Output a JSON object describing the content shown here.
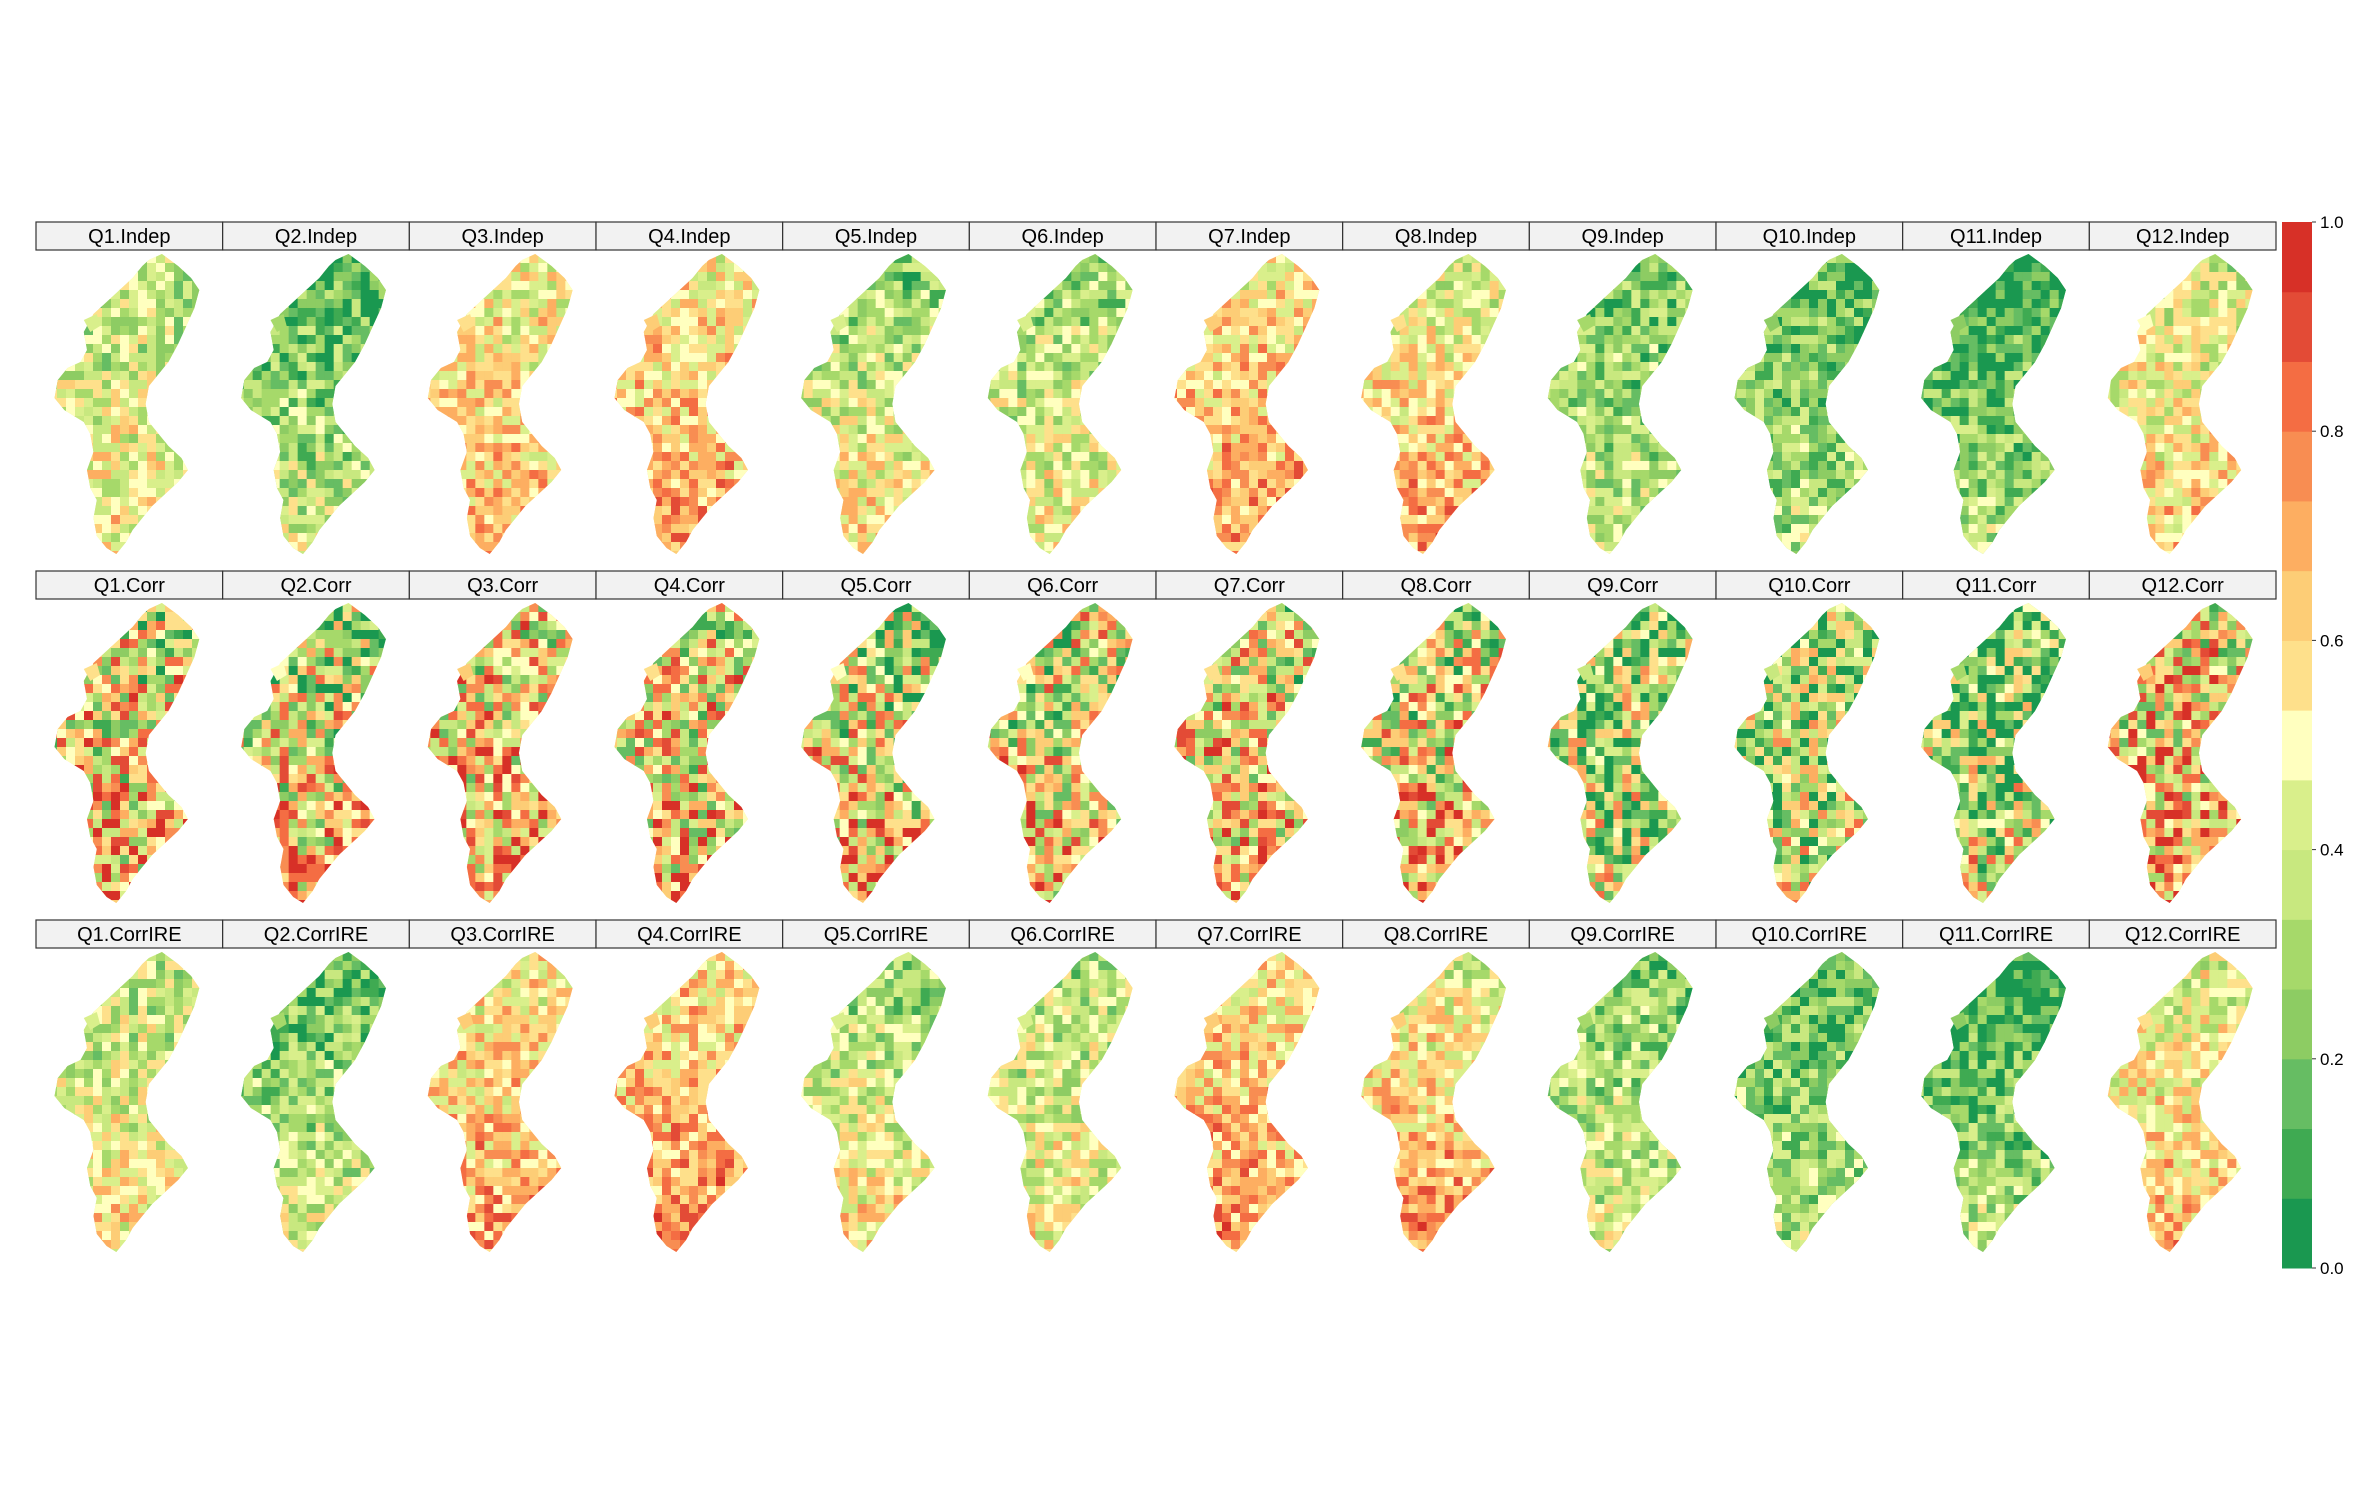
{
  "figure": {
    "type": "small-multiples choropleth maps",
    "region_shape": "Valencian Community municipalities",
    "rows": [
      {
        "suffix": "Indep",
        "panels": [
          "Q1.Indep",
          "Q2.Indep",
          "Q3.Indep",
          "Q4.Indep",
          "Q5.Indep",
          "Q6.Indep",
          "Q7.Indep",
          "Q8.Indep",
          "Q9.Indep",
          "Q10.Indep",
          "Q11.Indep",
          "Q12.Indep"
        ],
        "levels": [
          0.45,
          0.28,
          0.58,
          0.62,
          0.42,
          0.4,
          0.63,
          0.58,
          0.3,
          0.25,
          0.2,
          0.52
        ]
      },
      {
        "suffix": "Corr",
        "panels": [
          "Q1.Corr",
          "Q2.Corr",
          "Q3.Corr",
          "Q4.Corr",
          "Q5.Corr",
          "Q6.Corr",
          "Q7.Corr",
          "Q8.Corr",
          "Q9.Corr",
          "Q10.Corr",
          "Q11.Corr",
          "Q12.Corr"
        ],
        "levels": [
          0.55,
          0.5,
          0.6,
          0.55,
          0.5,
          0.52,
          0.56,
          0.55,
          0.35,
          0.35,
          0.33,
          0.6
        ]
      },
      {
        "suffix": "CorrIRE",
        "panels": [
          "Q1.CorrIRE",
          "Q2.CorrIRE",
          "Q3.CorrIRE",
          "Q4.CorrIRE",
          "Q5.CorrIRE",
          "Q6.CorrIRE",
          "Q7.CorrIRE",
          "Q8.CorrIRE",
          "Q9.CorrIRE",
          "Q10.CorrIRE",
          "Q11.CorrIRE",
          "Q12.CorrIRE"
        ],
        "levels": [
          0.45,
          0.3,
          0.62,
          0.66,
          0.42,
          0.44,
          0.64,
          0.6,
          0.33,
          0.26,
          0.22,
          0.55
        ]
      }
    ]
  },
  "colorbar": {
    "min": 0.0,
    "max": 1.0,
    "tick_labels": [
      "0.0",
      "0.2",
      "0.4",
      "0.6",
      "0.8",
      "1.0"
    ],
    "tick_values": [
      0.0,
      0.2,
      0.4,
      0.6,
      0.8,
      1.0
    ],
    "n_bins": 15,
    "colors": [
      "#1a9850",
      "#3faa52",
      "#66bd63",
      "#8dcc63",
      "#a6d96a",
      "#c8e87f",
      "#d9ef8b",
      "#ffffbf",
      "#fee08b",
      "#fdcd76",
      "#fdae61",
      "#f88d52",
      "#f46d43",
      "#e34b36",
      "#d73027"
    ]
  }
}
